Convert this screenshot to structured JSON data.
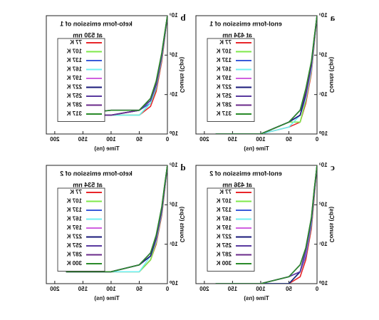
{
  "chart_data": [
    {
      "type": "line",
      "label": "a",
      "title": "enol-form emission of 1",
      "subtitle": "at 434 nm",
      "x_label": "Time (ns)",
      "y_label": "Counts (Cps)",
      "log_y": true,
      "x": [
        0,
        5,
        10,
        20,
        30,
        50,
        100,
        180
      ],
      "xlim": [
        0,
        215
      ],
      "xticks": [
        0,
        50,
        100,
        150,
        200
      ],
      "ylim": [
        1,
        1000
      ],
      "yticks": [
        {
          "value": 1,
          "label": "10⁰"
        },
        {
          "value": 10,
          "label": "10¹"
        },
        {
          "value": 100,
          "label": "10²"
        },
        {
          "value": 1000,
          "label": "10³"
        }
      ],
      "series": [
        {
          "name": "77 K",
          "color": "#e8262a",
          "values": [
            1000,
            180,
            35,
            6,
            2,
            1.5,
            1,
            1
          ]
        },
        {
          "name": "107 K",
          "color": "#7ee84a",
          "values": [
            1000,
            200,
            40,
            7,
            2,
            2,
            1,
            1
          ]
        },
        {
          "name": "137 K",
          "color": "#3a5bd9",
          "values": [
            1000,
            220,
            45,
            8,
            3,
            2,
            1,
            1
          ]
        },
        {
          "name": "167 K",
          "color": "#6ff0f0",
          "values": [
            950,
            210,
            42,
            8,
            3,
            1.5,
            1,
            1
          ]
        },
        {
          "name": "197 K",
          "color": "#d060e0",
          "values": [
            980,
            230,
            50,
            9,
            3,
            2,
            1,
            1
          ]
        },
        {
          "name": "227 K",
          "color": "#1a1a7a",
          "values": [
            1000,
            240,
            55,
            10,
            3,
            2,
            1,
            1
          ]
        },
        {
          "name": "257 K",
          "color": "#5a3aa0",
          "values": [
            960,
            250,
            60,
            11,
            4,
            2,
            1,
            1
          ]
        },
        {
          "name": "287 K",
          "color": "#6a2a8a",
          "values": [
            990,
            260,
            62,
            12,
            4,
            2,
            1,
            1
          ]
        },
        {
          "name": "317 K",
          "color": "#2a8a2a",
          "values": [
            1000,
            270,
            70,
            14,
            4,
            2,
            1,
            1
          ]
        }
      ]
    },
    {
      "type": "line",
      "label": "b",
      "title": "keto-form emission of 1",
      "subtitle": "at 530 nm",
      "x_label": "Time (ns)",
      "y_label": "Counts (Cps)",
      "log_y": true,
      "x": [
        0,
        5,
        10,
        20,
        30,
        50,
        100,
        180
      ],
      "xlim": [
        0,
        215
      ],
      "xticks": [
        0,
        50,
        100,
        150,
        200
      ],
      "ylim": [
        1,
        1000
      ],
      "yticks": [
        {
          "value": 1,
          "label": "10⁰"
        },
        {
          "value": 10,
          "label": "10¹"
        },
        {
          "value": 100,
          "label": "10²"
        },
        {
          "value": 1000,
          "label": "10³"
        }
      ],
      "series": [
        {
          "name": "77 K",
          "color": "#e8262a",
          "values": [
            1000,
            250,
            70,
            12,
            5,
            3,
            3,
            3
          ]
        },
        {
          "name": "107 K",
          "color": "#7ee84a",
          "values": [
            1000,
            270,
            80,
            14,
            6,
            3,
            3,
            3
          ]
        },
        {
          "name": "137 K",
          "color": "#3a5bd9",
          "values": [
            980,
            280,
            85,
            15,
            6,
            4,
            3,
            3
          ]
        },
        {
          "name": "167 K",
          "color": "#6ff0f0",
          "values": [
            990,
            290,
            90,
            16,
            6,
            3,
            3,
            3
          ]
        },
        {
          "name": "197 K",
          "color": "#d060e0",
          "values": [
            1000,
            300,
            95,
            17,
            7,
            4,
            4,
            3
          ]
        },
        {
          "name": "227 K",
          "color": "#1a1a7a",
          "values": [
            970,
            310,
            100,
            18,
            7,
            4,
            3,
            3
          ]
        },
        {
          "name": "257 K",
          "color": "#5a3aa0",
          "values": [
            1000,
            320,
            105,
            19,
            7,
            4,
            4,
            3
          ]
        },
        {
          "name": "287 K",
          "color": "#6a2a8a",
          "values": [
            990,
            330,
            110,
            20,
            8,
            4,
            3,
            3
          ]
        },
        {
          "name": "317 K",
          "color": "#2a8a2a",
          "values": [
            1000,
            340,
            115,
            22,
            8,
            4,
            4,
            3
          ]
        }
      ]
    },
    {
      "type": "line",
      "label": "c",
      "title": "enol-form emission of 2",
      "subtitle": "at 436 nm",
      "x_label": "Time (ns)",
      "y_label": "Counts (Cps)",
      "log_y": true,
      "x": [
        0,
        5,
        10,
        20,
        30,
        50,
        100,
        180
      ],
      "xlim": [
        0,
        215
      ],
      "xticks": [
        0,
        50,
        100,
        150,
        200
      ],
      "ylim": [
        1,
        1000
      ],
      "yticks": [
        {
          "value": 1,
          "label": "10⁰"
        },
        {
          "value": 10,
          "label": "10¹"
        },
        {
          "value": 100,
          "label": "10²"
        },
        {
          "value": 1000,
          "label": "10³"
        }
      ],
      "series": [
        {
          "name": "77 K",
          "color": "#e8262a",
          "values": [
            1000,
            150,
            25,
            4,
            1.5,
            1,
            1,
            1
          ]
        },
        {
          "name": "107 K",
          "color": "#7ee84a",
          "values": [
            1000,
            170,
            30,
            5,
            2,
            1,
            1,
            1
          ]
        },
        {
          "name": "137 K",
          "color": "#3a5bd9",
          "values": [
            980,
            180,
            32,
            5,
            2,
            1.5,
            1,
            1
          ]
        },
        {
          "name": "167 K",
          "color": "#6ff0f0",
          "values": [
            990,
            190,
            35,
            6,
            2,
            1,
            1,
            1
          ]
        },
        {
          "name": "197 K",
          "color": "#d060e0",
          "values": [
            1000,
            200,
            38,
            6,
            2,
            1.5,
            1,
            1
          ]
        },
        {
          "name": "227 K",
          "color": "#1a1a7a",
          "values": [
            970,
            210,
            40,
            7,
            2,
            1,
            1,
            1
          ]
        },
        {
          "name": "257 K",
          "color": "#5a3aa0",
          "values": [
            1000,
            220,
            42,
            7,
            2,
            1.5,
            1,
            1
          ]
        },
        {
          "name": "287 K",
          "color": "#6a2a8a",
          "values": [
            990,
            230,
            45,
            8,
            3,
            1.5,
            1,
            1
          ]
        },
        {
          "name": "300 K",
          "color": "#2a8a2a",
          "values": [
            1000,
            240,
            48,
            8,
            3,
            1.5,
            1,
            1
          ]
        }
      ]
    },
    {
      "type": "line",
      "label": "d",
      "title": "keto-form emission of 2",
      "subtitle": "at 534 nm",
      "x_label": "Time (ns)",
      "y_label": "Counts (Cps)",
      "log_y": true,
      "x": [
        0,
        5,
        10,
        20,
        30,
        50,
        100,
        180
      ],
      "xlim": [
        0,
        215
      ],
      "xticks": [
        0,
        50,
        100,
        150,
        200
      ],
      "ylim": [
        1,
        1000
      ],
      "yticks": [
        {
          "value": 1,
          "label": "10⁰"
        },
        {
          "value": 10,
          "label": "10¹"
        },
        {
          "value": 100,
          "label": "10²"
        },
        {
          "value": 1000,
          "label": "10³"
        }
      ],
      "series": [
        {
          "name": "77 K",
          "color": "#e8262a",
          "values": [
            1000,
            220,
            55,
            10,
            4,
            2,
            2,
            2
          ]
        },
        {
          "name": "107 K",
          "color": "#7ee84a",
          "values": [
            1000,
            240,
            60,
            11,
            4,
            2,
            2,
            2
          ]
        },
        {
          "name": "137 K",
          "color": "#3a5bd9",
          "values": [
            980,
            250,
            65,
            12,
            5,
            3,
            2,
            2
          ]
        },
        {
          "name": "167 K",
          "color": "#6ff0f0",
          "values": [
            990,
            260,
            70,
            12,
            5,
            2,
            2,
            2
          ]
        },
        {
          "name": "197 K",
          "color": "#d060e0",
          "values": [
            1000,
            270,
            72,
            13,
            5,
            3,
            2,
            2
          ]
        },
        {
          "name": "227 K",
          "color": "#1a1a7a",
          "values": [
            970,
            280,
            75,
            14,
            5,
            3,
            2,
            2
          ]
        },
        {
          "name": "257 K",
          "color": "#5a3aa0",
          "values": [
            1000,
            290,
            80,
            15,
            6,
            3,
            2,
            2
          ]
        },
        {
          "name": "287 K",
          "color": "#6a2a8a",
          "values": [
            990,
            300,
            85,
            16,
            6,
            3,
            2,
            2
          ]
        },
        {
          "name": "300 K",
          "color": "#2a8a2a",
          "values": [
            1000,
            310,
            90,
            17,
            6,
            3,
            2,
            2
          ]
        }
      ]
    }
  ]
}
